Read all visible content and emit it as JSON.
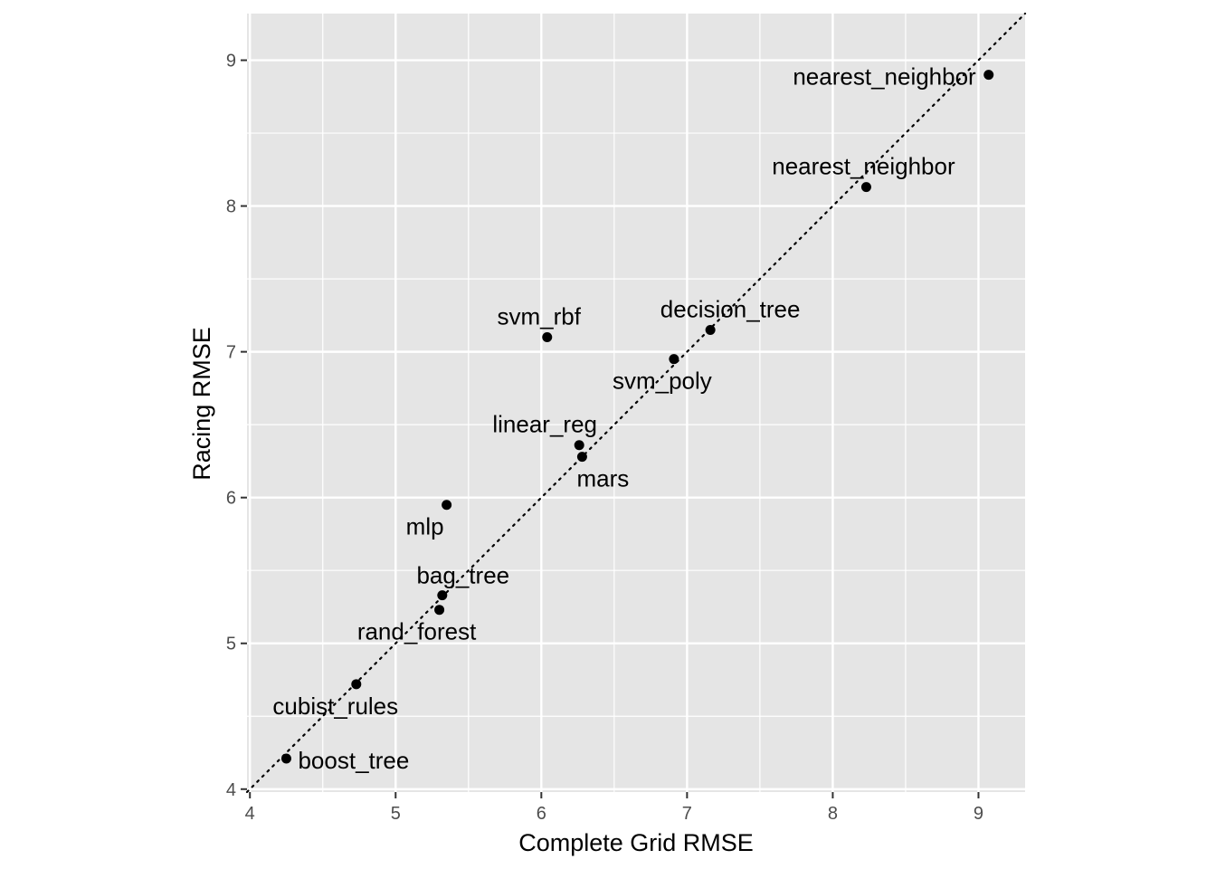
{
  "chart_data": {
    "type": "scatter",
    "title": "",
    "xlabel": "Complete Grid RMSE",
    "ylabel": "Racing RMSE",
    "xlim": [
      3.98,
      9.32
    ],
    "ylim": [
      3.98,
      9.32
    ],
    "x_ticks": [
      4,
      5,
      6,
      7,
      8,
      9
    ],
    "y_ticks": [
      4,
      5,
      6,
      7,
      8,
      9
    ],
    "x_tick_labels": [
      "4",
      "5",
      "6",
      "7",
      "8",
      "9"
    ],
    "y_tick_labels": [
      "4",
      "5",
      "6",
      "7",
      "8",
      "9"
    ],
    "grid": true,
    "reference_line": {
      "slope": 1,
      "intercept": 0,
      "style": "dotted"
    },
    "colors": {
      "panel": "#e5e5e5",
      "grid": "#ffffff",
      "point": "#000000"
    },
    "points": [
      {
        "label": "nearest_neighbor",
        "x": 9.07,
        "y": 8.9
      },
      {
        "label": "nearest_neighbor",
        "x": 8.23,
        "y": 8.13
      },
      {
        "label": "decision_tree",
        "x": 7.16,
        "y": 7.15
      },
      {
        "label": "svm_rbf",
        "x": 6.04,
        "y": 7.1
      },
      {
        "label": "svm_poly",
        "x": 6.91,
        "y": 6.95
      },
      {
        "label": "linear_reg",
        "x": 6.26,
        "y": 6.36
      },
      {
        "label": "mars",
        "x": 6.28,
        "y": 6.28
      },
      {
        "label": "mlp",
        "x": 5.35,
        "y": 5.95
      },
      {
        "label": "bag_tree",
        "x": 5.32,
        "y": 5.33
      },
      {
        "label": "rand_forest",
        "x": 5.3,
        "y": 5.23
      },
      {
        "label": "cubist_rules",
        "x": 4.73,
        "y": 4.72
      },
      {
        "label": "boost_tree",
        "x": 4.25,
        "y": 4.21
      }
    ]
  }
}
